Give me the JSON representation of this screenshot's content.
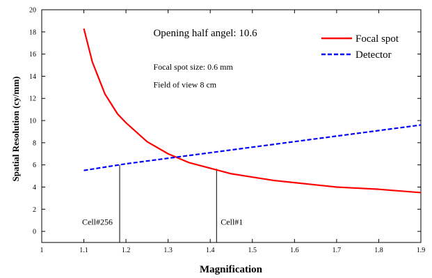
{
  "chart_data": {
    "type": "line",
    "xlabel": "Magnification",
    "ylabel": "Spatial Resolution (cy/mm)",
    "xlim": [
      1,
      1.9
    ],
    "ylim": [
      -1,
      20
    ],
    "x_ticks": [
      "1",
      "1.1",
      "1.2",
      "1.3",
      "1.4",
      "1.5",
      "1.6",
      "1.7",
      "1.8",
      "1.9"
    ],
    "y_ticks": [
      "0",
      "2",
      "4",
      "6",
      "8",
      "10",
      "12",
      "14",
      "16",
      "18",
      "20"
    ],
    "grid": false,
    "legend_position": "top-right",
    "series": [
      {
        "name": "Focal spot",
        "color": "#ff0000",
        "style": "solid",
        "x": [
          1.1,
          1.12,
          1.15,
          1.18,
          1.2,
          1.25,
          1.3,
          1.35,
          1.4,
          1.45,
          1.5,
          1.55,
          1.6,
          1.65,
          1.7,
          1.75,
          1.8,
          1.85,
          1.9
        ],
        "y": [
          18.3,
          15.3,
          12.4,
          10.6,
          9.8,
          8.1,
          7.0,
          6.2,
          5.7,
          5.2,
          4.9,
          4.6,
          4.4,
          4.2,
          4.0,
          3.9,
          3.8,
          3.65,
          3.5
        ]
      },
      {
        "name": "Detector",
        "color": "#0000ff",
        "style": "dashed",
        "x": [
          1.1,
          1.2,
          1.3,
          1.4,
          1.5,
          1.6,
          1.7,
          1.8,
          1.9
        ],
        "y": [
          5.5,
          6.1,
          6.6,
          7.1,
          7.6,
          8.1,
          8.6,
          9.1,
          9.6
        ]
      }
    ],
    "markers": [
      {
        "label": "Cell#256",
        "x": 1.185,
        "y_top": 6.0,
        "y_bottom": -1
      },
      {
        "label": "Cell#1",
        "x": 1.415,
        "y_top": 5.65,
        "y_bottom": -1
      }
    ],
    "annotations": [
      {
        "text": "Opening half angel:  10.6",
        "x": 1.265,
        "y": 17.6,
        "size": "large"
      },
      {
        "text": "Focal spot size: 0.6 mm",
        "x": 1.265,
        "y": 14.6,
        "size": "small"
      },
      {
        "text": "Field of view 8 cm",
        "x": 1.265,
        "y": 13.0,
        "size": "small"
      }
    ]
  }
}
